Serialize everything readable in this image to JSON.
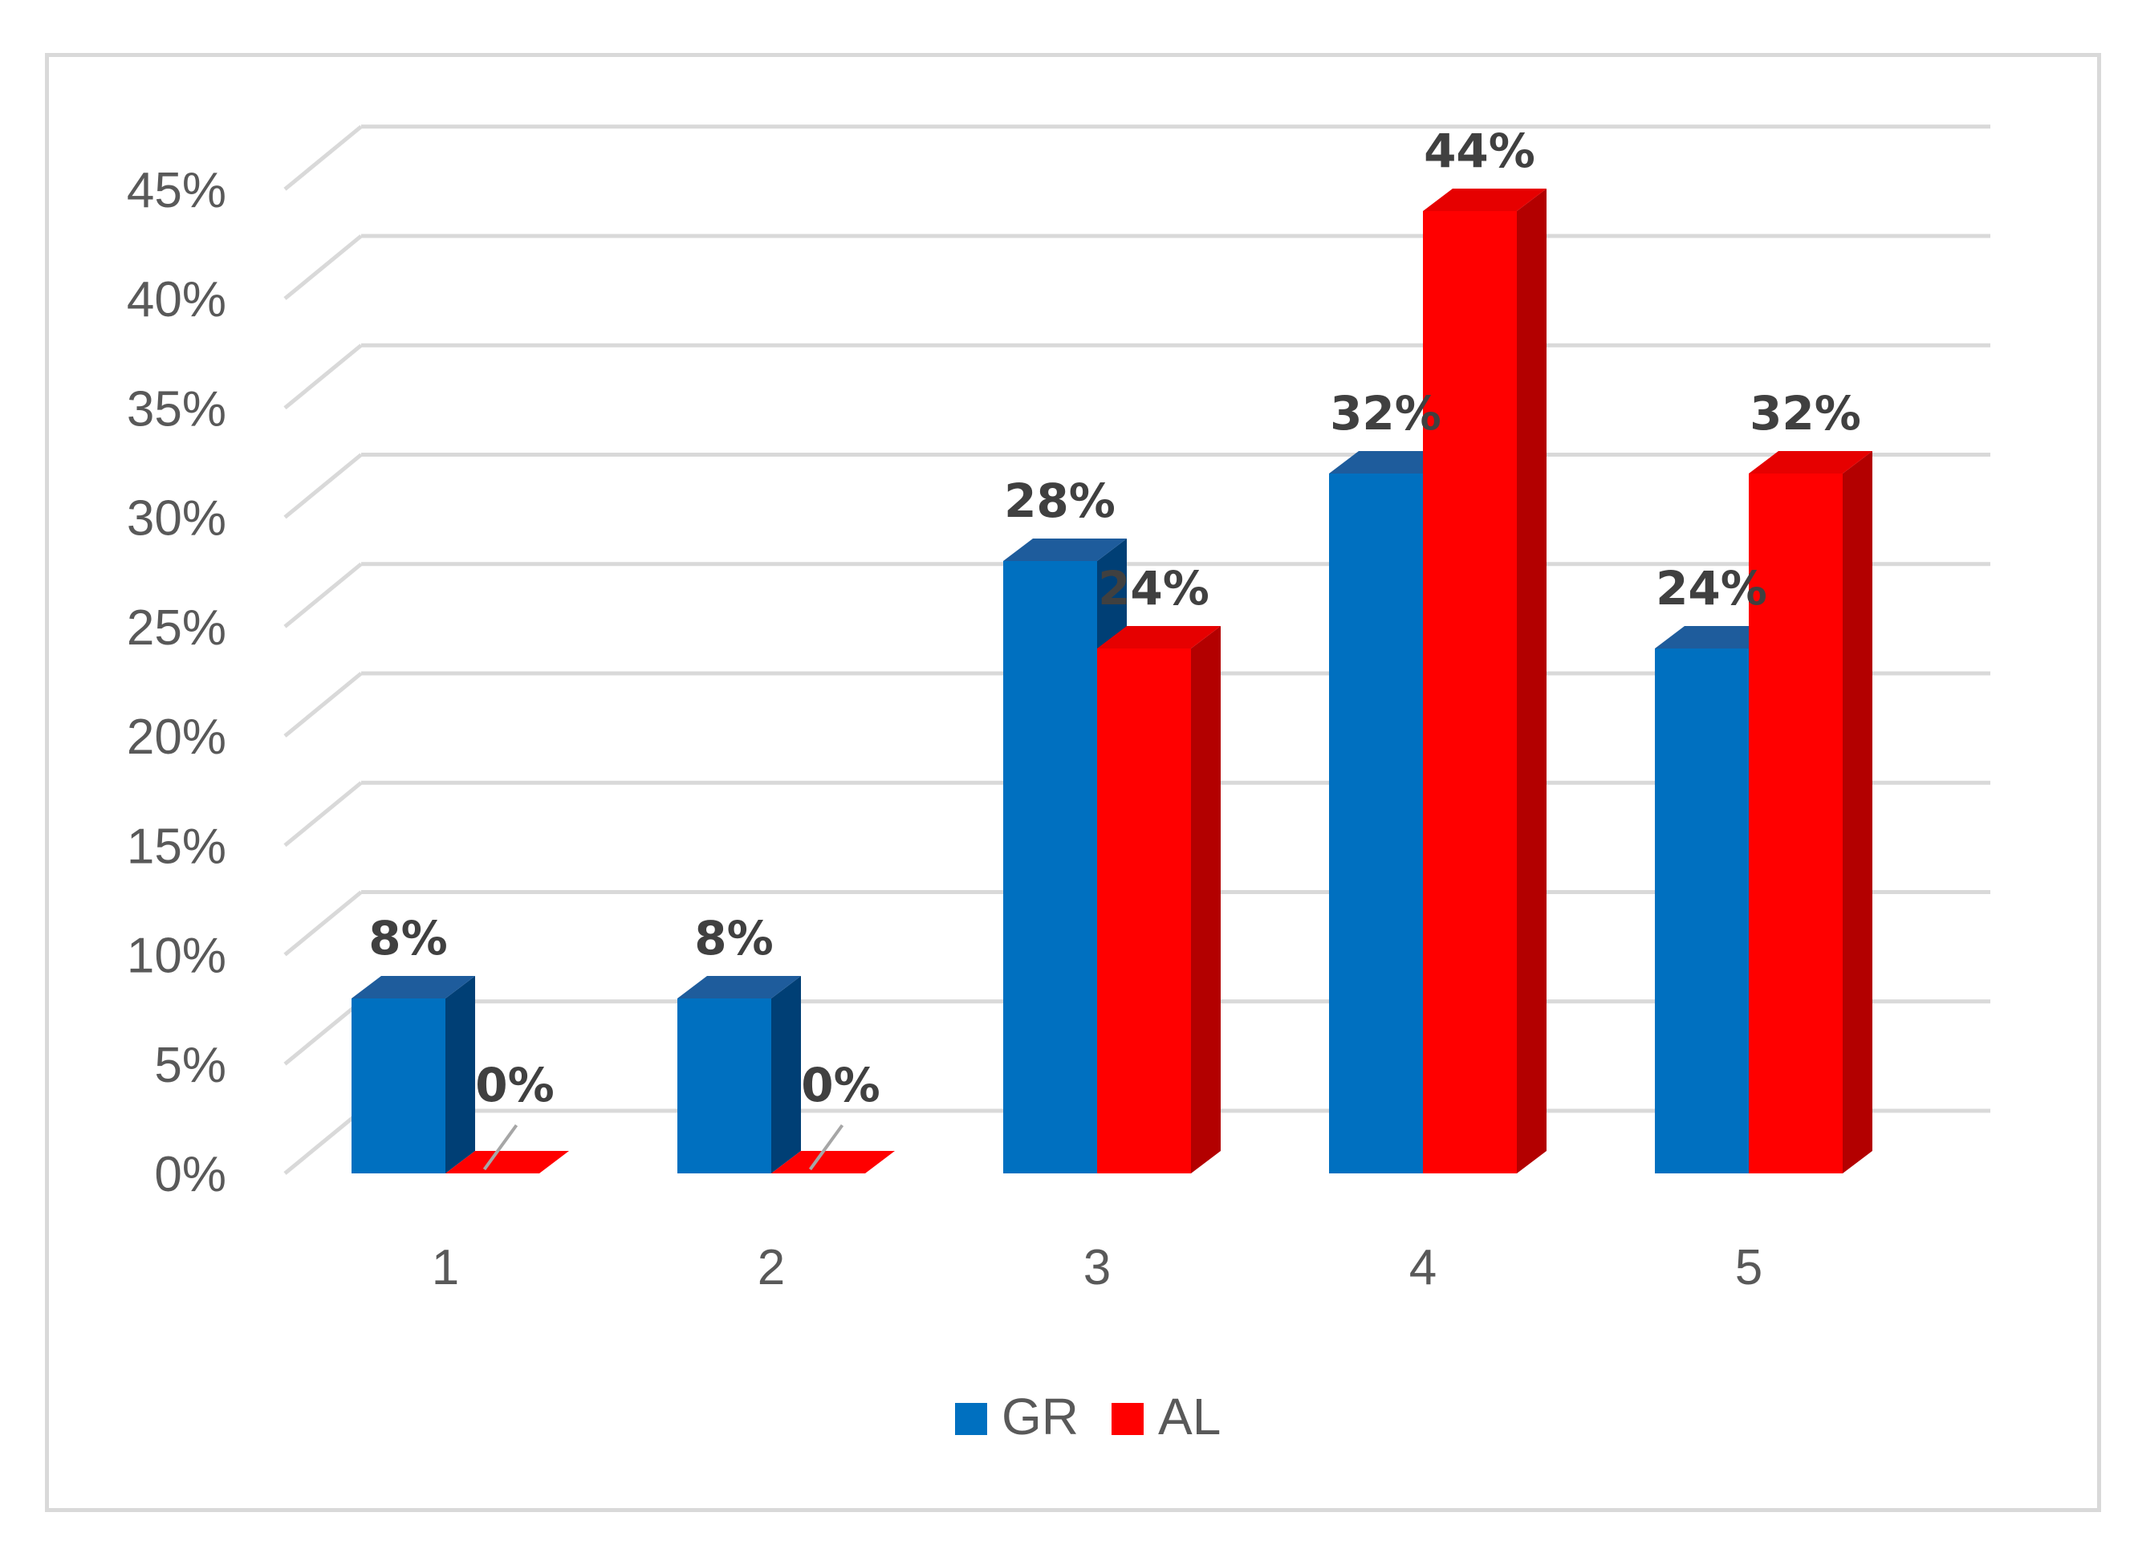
{
  "chart_data": {
    "type": "bar",
    "style": "3d-clustered-column",
    "categories": [
      "1",
      "2",
      "3",
      "4",
      "5"
    ],
    "series": [
      {
        "name": "GR",
        "values": [
          8,
          8,
          28,
          32,
          24
        ],
        "labels": [
          "8%",
          "8%",
          "28%",
          "32%",
          "24%"
        ],
        "color": "#0070c0"
      },
      {
        "name": "AL",
        "values": [
          0,
          0,
          24,
          44,
          32
        ],
        "labels": [
          "0%",
          "0%",
          "24%",
          "44%",
          "32%"
        ],
        "color": "#ff0000"
      }
    ],
    "yticks": [
      0,
      5,
      10,
      15,
      20,
      25,
      30,
      35,
      40,
      45
    ],
    "yticklabels": [
      "0%",
      "5%",
      "10%",
      "15%",
      "20%",
      "25%",
      "30%",
      "35%",
      "40%",
      "45%"
    ],
    "ylim": [
      0,
      45
    ],
    "grid": true,
    "legend_position": "bottom",
    "title": "",
    "xlabel": "",
    "ylabel": ""
  }
}
